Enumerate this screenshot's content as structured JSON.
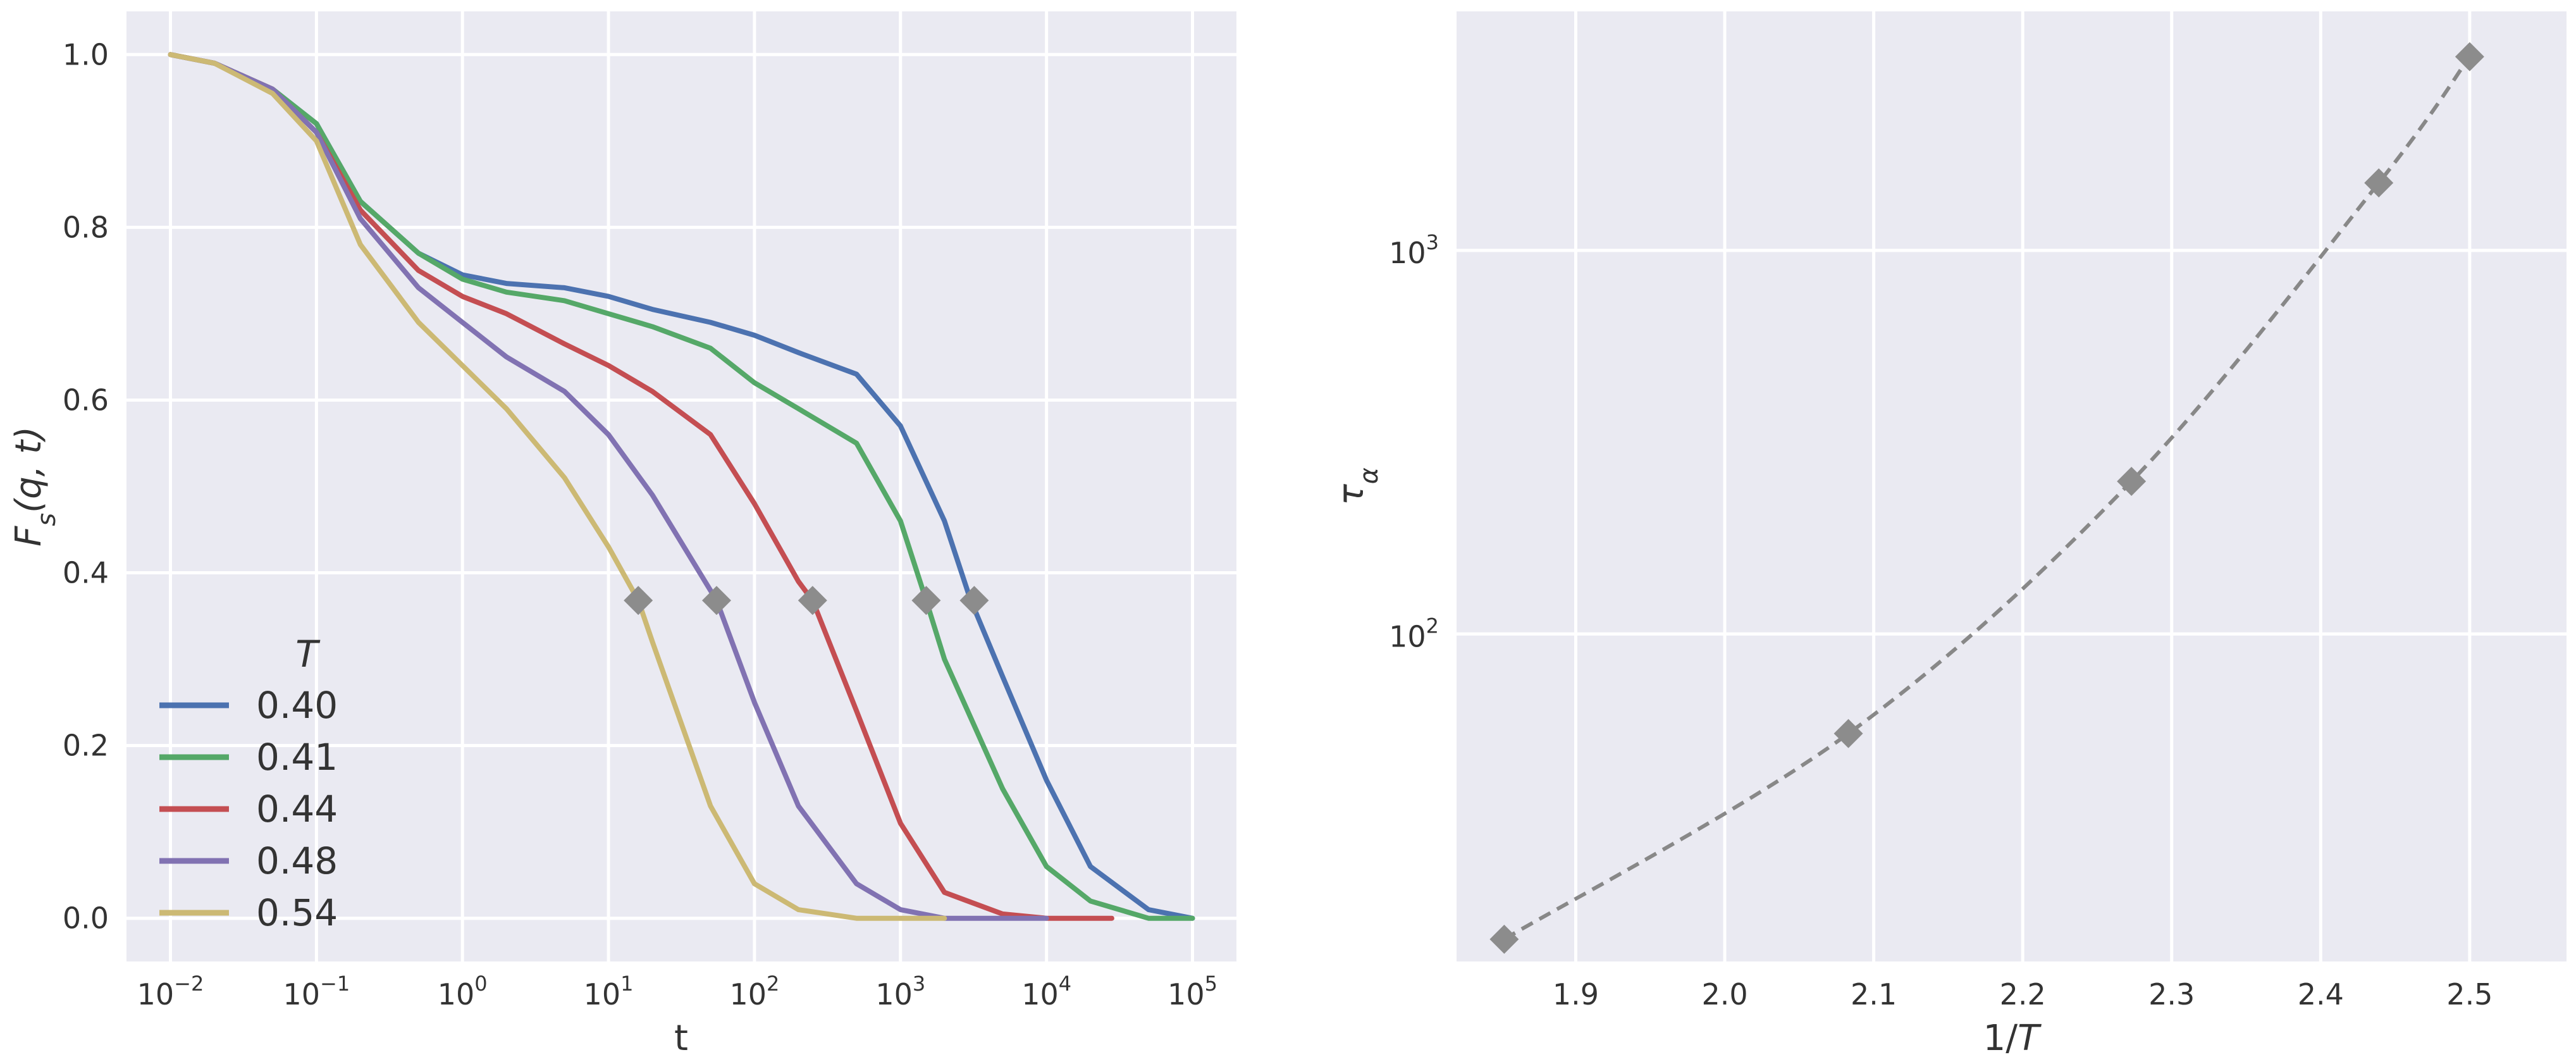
{
  "chart_data": [
    {
      "type": "line",
      "xlabel": "t",
      "ylabel": "F_s(q, t)",
      "x_scale": "log",
      "xlim": [
        0.005,
        200000
      ],
      "ylim": [
        -0.05,
        1.05
      ],
      "xtick_exponents": [
        -2,
        -1,
        0,
        1,
        2,
        3,
        4,
        5
      ],
      "yticks": [
        0.0,
        0.2,
        0.4,
        0.6,
        0.8,
        1.0
      ],
      "ytick_labels": [
        "0.0",
        "0.2",
        "0.4",
        "0.6",
        "0.8",
        "1.0"
      ],
      "grid": true,
      "legend": {
        "title": "T",
        "placement": "lower-left"
      },
      "series": [
        {
          "name": "0.40",
          "color": "#4c72b0",
          "x": [
            0.01,
            0.02,
            0.05,
            0.1,
            0.2,
            0.5,
            1,
            2,
            5,
            10,
            20,
            50,
            100,
            200,
            500,
            1000,
            2000,
            3000,
            5000,
            10000,
            20000,
            50000,
            100000
          ],
          "y": [
            1.0,
            0.99,
            0.96,
            0.92,
            0.83,
            0.77,
            0.745,
            0.735,
            0.73,
            0.72,
            0.705,
            0.69,
            0.675,
            0.655,
            0.63,
            0.57,
            0.46,
            0.37,
            0.28,
            0.16,
            0.06,
            0.01,
            0.0
          ],
          "marker": {
            "x": 3200,
            "y": 0.368
          }
        },
        {
          "name": "0.41",
          "color": "#55a868",
          "x": [
            0.01,
            0.02,
            0.05,
            0.1,
            0.2,
            0.5,
            1,
            2,
            5,
            10,
            20,
            50,
            100,
            200,
            500,
            1000,
            1500,
            2000,
            5000,
            10000,
            20000,
            50000,
            100000
          ],
          "y": [
            1.0,
            0.99,
            0.96,
            0.92,
            0.83,
            0.77,
            0.74,
            0.725,
            0.715,
            0.7,
            0.685,
            0.66,
            0.62,
            0.59,
            0.55,
            0.46,
            0.368,
            0.3,
            0.15,
            0.06,
            0.02,
            0.0,
            0.0
          ],
          "marker": {
            "x": 1500,
            "y": 0.368
          }
        },
        {
          "name": "0.44",
          "color": "#c44e52",
          "x": [
            0.01,
            0.02,
            0.05,
            0.1,
            0.2,
            0.5,
            1,
            2,
            5,
            10,
            20,
            50,
            100,
            200,
            250,
            500,
            1000,
            2000,
            5000,
            10000,
            20000,
            28000
          ],
          "y": [
            1.0,
            0.99,
            0.96,
            0.91,
            0.82,
            0.75,
            0.72,
            0.7,
            0.665,
            0.64,
            0.61,
            0.56,
            0.48,
            0.39,
            0.368,
            0.24,
            0.11,
            0.03,
            0.005,
            0.0,
            0.0,
            0.0
          ],
          "marker": {
            "x": 250,
            "y": 0.368
          }
        },
        {
          "name": "0.48",
          "color": "#8172b2",
          "x": [
            0.01,
            0.02,
            0.05,
            0.1,
            0.2,
            0.5,
            1,
            2,
            5,
            10,
            20,
            55,
            100,
            200,
            500,
            1000,
            2000,
            5000,
            10000
          ],
          "y": [
            1.0,
            0.99,
            0.96,
            0.91,
            0.81,
            0.73,
            0.69,
            0.65,
            0.61,
            0.56,
            0.49,
            0.368,
            0.25,
            0.13,
            0.04,
            0.01,
            0.0,
            0.0,
            0.0
          ],
          "marker": {
            "x": 55,
            "y": 0.368
          }
        },
        {
          "name": "0.54",
          "color": "#ccb974",
          "x": [
            0.01,
            0.02,
            0.05,
            0.1,
            0.2,
            0.5,
            1,
            2,
            5,
            10,
            16,
            20,
            50,
            100,
            200,
            500,
            1000,
            2000
          ],
          "y": [
            1.0,
            0.99,
            0.955,
            0.9,
            0.78,
            0.69,
            0.64,
            0.59,
            0.51,
            0.43,
            0.368,
            0.32,
            0.13,
            0.04,
            0.01,
            0.0,
            0.0,
            0.0
          ],
          "marker": {
            "x": 16,
            "y": 0.368
          }
        }
      ]
    },
    {
      "type": "line",
      "xlabel": "1/T",
      "ylabel": "τ_α",
      "y_scale": "log",
      "xlim": [
        1.82,
        2.565
      ],
      "ylim": [
        14,
        4200
      ],
      "xticks": [
        1.9,
        2.0,
        2.1,
        2.2,
        2.3,
        2.4,
        2.5
      ],
      "xtick_labels": [
        "1.9",
        "2.0",
        "2.1",
        "2.2",
        "2.3",
        "2.4",
        "2.5"
      ],
      "ytick_exponents": [
        2,
        3
      ],
      "grid": true,
      "series": [
        {
          "color": "#888888",
          "linestyle": "dashed",
          "marker": "diamond",
          "x": [
            1.852,
            2.083,
            2.273,
            2.439,
            2.5
          ],
          "y": [
            16,
            55,
            250,
            1500,
            3200
          ]
        }
      ]
    }
  ]
}
